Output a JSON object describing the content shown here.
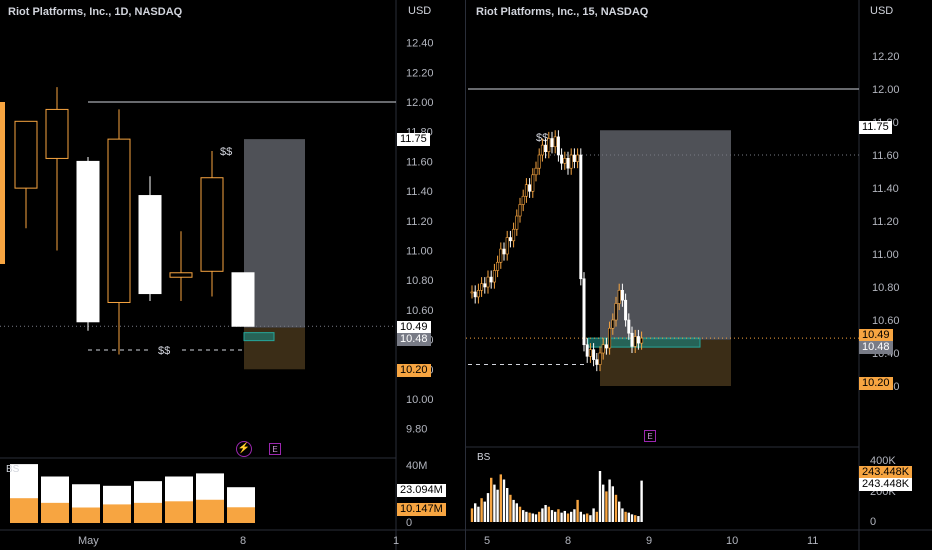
{
  "left_pane": {
    "title": "Riot Platforms, Inc., 1D, NASDAQ",
    "currency": "USD",
    "y_ticks": [
      "12.40",
      "12.20",
      "12.00",
      "11.80",
      "11.60",
      "11.40",
      "11.20",
      "11.00",
      "10.80",
      "10.60",
      "10.40",
      "10.20",
      "10.00",
      "9.80"
    ],
    "price_tags": {
      "target": "11.75",
      "last": "10.49",
      "entry": "10.48",
      "stop": "10.20"
    },
    "volume_ticks": {
      "v40m": "40M",
      "v0": "0"
    },
    "volume_tags": {
      "buy": "23.094M",
      "sell": "10.147M"
    },
    "bs_label": "BS",
    "x_labels": {
      "may": "May",
      "d8": "8",
      "d1": "1"
    },
    "annotation_top": "$$",
    "annotation_bottom": "$$",
    "event_icon": "E",
    "flash_icon": "⚡"
  },
  "right_pane": {
    "title": "Riot Platforms, Inc., 15, NASDAQ",
    "currency": "USD",
    "y_ticks": [
      "12.20",
      "12.00",
      "11.80",
      "11.60",
      "11.40",
      "11.20",
      "11.00",
      "10.80",
      "10.60",
      "10.40",
      "10.20"
    ],
    "price_tags": {
      "target": "11.75",
      "last": "10.49",
      "entry": "10.48",
      "stop": "10.20"
    },
    "volume_ticks": {
      "v400k": "400K",
      "v200k": "200K",
      "v0": "0"
    },
    "volume_tags": {
      "buy": "243.448K",
      "sell": "243.448K"
    },
    "bs_label": "BS",
    "x_labels": {
      "d5": "5",
      "d8": "8",
      "d9": "9",
      "d10": "10",
      "d11": "11"
    },
    "annotation_top": "$$",
    "event_icon": "E"
  },
  "colors": {
    "background": "#000000",
    "bull_body": "#000000",
    "bull_border": "#f7a541",
    "bear_body": "#ffffff",
    "accent_orange": "#f7a541",
    "target_zone": "#5d5f66",
    "stop_zone": "#3b2d17",
    "entry_box": "#1e7b74",
    "axis_text": "#b2b5be"
  },
  "chart_data": [
    {
      "type": "candlestick",
      "title": "Riot Platforms, Inc., 1D, NASDAQ",
      "ylim": [
        9.75,
        12.5
      ],
      "candles": [
        {
          "o": 11.42,
          "h": 11.87,
          "l": 11.15,
          "c": 11.87
        },
        {
          "o": 11.62,
          "h": 12.1,
          "l": 11.0,
          "c": 11.95
        },
        {
          "o": 11.6,
          "h": 11.63,
          "l": 10.46,
          "c": 10.52
        },
        {
          "o": 10.65,
          "h": 11.95,
          "l": 10.3,
          "c": 11.75
        },
        {
          "o": 11.37,
          "h": 11.5,
          "l": 10.66,
          "c": 10.71
        },
        {
          "o": 10.82,
          "h": 11.13,
          "l": 10.66,
          "c": 10.85
        },
        {
          "o": 10.86,
          "h": 11.67,
          "l": 10.69,
          "c": 11.49
        },
        {
          "o": 10.85,
          "h": 10.85,
          "l": 10.49,
          "c": 10.49
        }
      ],
      "horizontal_levels": [
        12.0
      ],
      "dashed_level": 10.33,
      "position": {
        "target": 11.75,
        "entry": 10.48,
        "stop": 10.2
      },
      "volume": {
        "buy": [
          38,
          30,
          25,
          24,
          27,
          30,
          32,
          23.094
        ],
        "sell": [
          16,
          13,
          10,
          12,
          13,
          14,
          15,
          10.147
        ],
        "ylim": [
          0,
          40
        ]
      }
    },
    {
      "type": "candlestick",
      "title": "Riot Platforms, Inc., 15, NASDAQ",
      "ylim": [
        10.0,
        12.3
      ],
      "horizontal_levels": [
        12.0
      ],
      "dashed_level": 10.33,
      "position": {
        "target": 11.75,
        "entry": 10.48,
        "stop": 10.2
      },
      "close_series": [
        10.77,
        10.74,
        10.78,
        10.82,
        10.8,
        10.86,
        10.83,
        10.9,
        10.95,
        11.03,
        11.0,
        11.1,
        11.08,
        11.15,
        11.23,
        11.3,
        11.35,
        11.42,
        11.38,
        11.48,
        11.52,
        11.6,
        11.66,
        11.62,
        11.7,
        11.65,
        11.71,
        11.6,
        11.55,
        11.58,
        11.52,
        11.6,
        11.56,
        11.6,
        10.85,
        10.45,
        10.38,
        10.42,
        10.36,
        10.33,
        10.4,
        10.45,
        10.43,
        10.55,
        10.6,
        10.7,
        10.78,
        10.72,
        10.6,
        10.52,
        10.44,
        10.5,
        10.46,
        10.49
      ],
      "volume": {
        "values": [
          80,
          110,
          90,
          140,
          120,
          170,
          260,
          220,
          190,
          280,
          250,
          200,
          160,
          130,
          110,
          90,
          70,
          60,
          55,
          50,
          45,
          60,
          80,
          100,
          90,
          70,
          60,
          75,
          55,
          65,
          50,
          60,
          75,
          130,
          60,
          45,
          50,
          40,
          80,
          60,
          300,
          220,
          180,
          250,
          210,
          160,
          120,
          80,
          60,
          55,
          45,
          40,
          35,
          243.448
        ],
        "ylim": [
          0,
          400
        ]
      }
    }
  ]
}
